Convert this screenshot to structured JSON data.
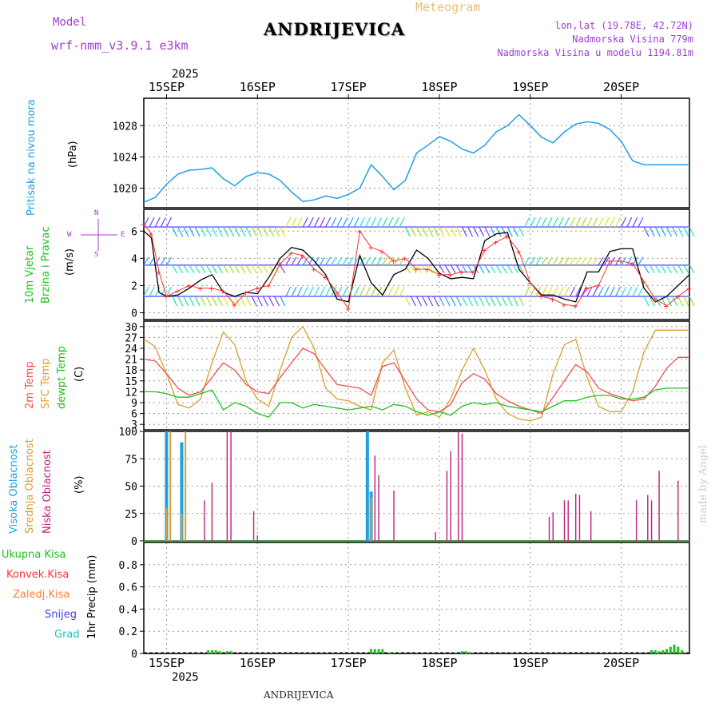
{
  "header": {
    "model_label": "Model",
    "model_name": "wrf-nmm_v3.9.1  e3km",
    "title": "ANDRIJEVICA",
    "subtitle": "Meteogram",
    "coords": "lon,lat (19.78E, 42.72N)",
    "elevation": "Nadmorska Visina 779m",
    "model_elevation": "Nadmorska Visina u modelu 1194.81m"
  },
  "footer": {
    "station": "ANDRIJEVICA",
    "credit": "made by Angel",
    "year": "2025"
  },
  "colors": {
    "pressure": "#1ea0e6",
    "wind_speed": "#000000",
    "wind_gust": "#ff3030",
    "temp_2m": "#f05050",
    "temp_sfc": "#d8a030",
    "dewpoint": "#20c020",
    "cloud_high": "#1ea0e6",
    "cloud_mid": "#d8a030",
    "cloud_low": "#c0207a",
    "precip_total": "#20c020",
    "precip_conv": "#ff3030",
    "precip_frozen": "#ff8030",
    "precip_snow": "#4040e0",
    "precip_graupel": "#20c0c0",
    "label_purple": "#a040d0"
  },
  "chart_data": [
    {
      "type": "line",
      "panel": "pressure",
      "ylabel_name": "Pritisak na nivou mora",
      "units": "(hPa)",
      "ylim": [
        1017.5,
        1031.5
      ],
      "yticks": [
        1020,
        1024,
        1028
      ],
      "x_days": [
        "15SEP",
        "16SEP",
        "17SEP",
        "18SEP",
        "19SEP",
        "20SEP"
      ],
      "x_range_hours": [
        -6,
        138
      ],
      "x": [
        -6,
        -3,
        0,
        3,
        6,
        9,
        12,
        15,
        18,
        21,
        24,
        27,
        30,
        33,
        36,
        39,
        42,
        45,
        48,
        51,
        54,
        57,
        60,
        63,
        66,
        69,
        72,
        75,
        78,
        81,
        84,
        87,
        90,
        93,
        96,
        99,
        102,
        105,
        108,
        111,
        114,
        117,
        120,
        123,
        126,
        129,
        132,
        135,
        138
      ],
      "values": [
        1018.2,
        1018.8,
        1020.5,
        1021.8,
        1022.3,
        1022.4,
        1022.6,
        1021.2,
        1020.3,
        1021.5,
        1022.0,
        1021.8,
        1021.0,
        1019.5,
        1018.3,
        1018.5,
        1019.0,
        1018.7,
        1019.2,
        1020.0,
        1023.0,
        1021.5,
        1019.8,
        1021.0,
        1024.5,
        1025.5,
        1026.6,
        1026.0,
        1025.0,
        1024.5,
        1025.5,
        1027.2,
        1028.0,
        1029.4,
        1028.0,
        1026.5,
        1025.8,
        1027.2,
        1028.2,
        1028.5,
        1028.3,
        1027.5,
        1026.0,
        1023.5,
        1023.0,
        1023.0,
        1023.0,
        1023.0,
        1023.0
      ]
    },
    {
      "type": "line",
      "panel": "wind",
      "ylabel_name": "10m Vjetar",
      "ylabel_sub": "Brzina i Pravac",
      "units": "(m/s)",
      "compass": {
        "n": "N",
        "s": "S",
        "e": "E",
        "w": "W"
      },
      "ylim": [
        -0.5,
        7.6
      ],
      "yticks": [
        0,
        2,
        4,
        6
      ],
      "x": [
        -6,
        -4,
        -2,
        0,
        3,
        6,
        9,
        12,
        15,
        18,
        21,
        24,
        27,
        30,
        33,
        36,
        39,
        42,
        45,
        48,
        51,
        54,
        57,
        60,
        63,
        66,
        69,
        72,
        75,
        78,
        81,
        84,
        87,
        90,
        93,
        96,
        99,
        102,
        105,
        108,
        111,
        114,
        117,
        120,
        123,
        126,
        129,
        132,
        135,
        138
      ],
      "series": [
        {
          "name": "speed",
          "values": [
            6.0,
            5.5,
            1.5,
            1.2,
            1.3,
            1.8,
            2.4,
            2.8,
            1.5,
            1.2,
            1.5,
            1.4,
            2.6,
            4.0,
            4.8,
            4.6,
            3.8,
            2.8,
            1.0,
            0.8,
            4.2,
            2.2,
            1.3,
            2.8,
            3.2,
            4.6,
            4.0,
            2.9,
            2.5,
            2.6,
            2.5,
            5.3,
            5.8,
            5.9,
            3.2,
            2.2,
            1.3,
            1.3,
            1.0,
            0.8,
            3.0,
            3.0,
            4.5,
            4.7,
            4.7,
            1.8,
            0.8,
            1.2,
            2.0,
            2.8
          ]
        },
        {
          "name": "gust",
          "values": [
            6.5,
            5.8,
            3.0,
            1.2,
            1.6,
            2.0,
            1.8,
            1.8,
            1.6,
            0.6,
            1.5,
            1.8,
            2.0,
            3.6,
            4.4,
            4.2,
            3.2,
            2.6,
            1.5,
            0.3,
            6.0,
            4.8,
            4.5,
            3.8,
            4.0,
            3.2,
            3.2,
            2.8,
            2.8,
            3.0,
            3.0,
            4.6,
            5.2,
            5.6,
            4.5,
            2.2,
            1.2,
            1.0,
            0.6,
            0.5,
            1.8,
            2.0,
            3.8,
            3.8,
            3.6,
            2.3,
            1.0,
            0.5,
            1.2,
            1.8
          ]
        }
      ],
      "barb_rows": [
        {
          "level": 6.3,
          "colors": [
            "#7040ff",
            "#20a0ff",
            "#20e0e0",
            "#20e0a0",
            "#a0e020",
            "#e0e020"
          ]
        },
        {
          "level": 3.5,
          "colors": [
            "#7040ff",
            "#20a0ff",
            "#20e0e0",
            "#20e0a0",
            "#a0e020",
            "#e0e020"
          ]
        },
        {
          "level": 1.2,
          "colors": [
            "#7040ff",
            "#20a0ff",
            "#20e0e0",
            "#20e0a0",
            "#a0e020",
            "#e0e020"
          ]
        }
      ]
    },
    {
      "type": "line",
      "panel": "temperature",
      "legend": [
        "2m Temp",
        "SFC Temp",
        "dewpt Temp"
      ],
      "units": "(C)",
      "ylim": [
        1.5,
        31.5
      ],
      "yticks": [
        3,
        6,
        9,
        12,
        15,
        18,
        21,
        24,
        27,
        30
      ],
      "x": [
        -6,
        -3,
        0,
        3,
        6,
        9,
        12,
        15,
        18,
        21,
        24,
        27,
        30,
        33,
        36,
        39,
        42,
        45,
        48,
        51,
        54,
        57,
        60,
        63,
        66,
        69,
        72,
        75,
        78,
        81,
        84,
        87,
        90,
        93,
        96,
        99,
        102,
        105,
        108,
        111,
        114,
        117,
        120,
        123,
        126,
        129,
        132,
        135,
        138
      ],
      "series": [
        {
          "name": "2m Temp",
          "values": [
            21.0,
            20.5,
            17.0,
            13.0,
            11.0,
            12.0,
            16.0,
            20.0,
            18.0,
            14.0,
            12.0,
            11.5,
            16.0,
            20.0,
            24.0,
            22.5,
            18.0,
            14.0,
            13.5,
            13.0,
            11.0,
            19.0,
            20.0,
            15.0,
            10.0,
            7.0,
            6.5,
            8.5,
            14.5,
            17.0,
            15.5,
            11.5,
            9.5,
            8.0,
            7.0,
            6.0,
            10.5,
            15.0,
            19.5,
            17.5,
            13.0,
            11.5,
            10.5,
            9.5,
            10.0,
            13.5,
            18.5,
            21.5,
            21.5
          ]
        },
        {
          "name": "SFC Temp",
          "values": [
            26.5,
            24.5,
            17.0,
            8.5,
            7.5,
            10.0,
            20.0,
            28.5,
            25.0,
            15.0,
            10.0,
            8.0,
            18.0,
            27.0,
            30.0,
            24.0,
            13.0,
            10.0,
            9.5,
            8.0,
            7.0,
            20.0,
            23.5,
            13.0,
            5.5,
            6.5,
            5.0,
            10.0,
            18.0,
            24.0,
            18.0,
            10.0,
            6.0,
            4.5,
            4.0,
            5.0,
            17.0,
            25.0,
            26.5,
            16.0,
            8.0,
            6.5,
            6.5,
            12.0,
            23.0,
            29.0,
            29.0,
            29.0,
            29.0
          ]
        },
        {
          "name": "dewpt Temp",
          "values": [
            12.0,
            12.0,
            11.5,
            10.5,
            10.5,
            11.5,
            12.5,
            7.0,
            9.0,
            8.0,
            6.0,
            5.0,
            9.0,
            9.0,
            7.5,
            8.5,
            8.0,
            7.5,
            7.0,
            7.5,
            8.0,
            7.0,
            8.5,
            8.0,
            6.5,
            5.5,
            6.5,
            5.5,
            8.0,
            9.0,
            8.5,
            9.0,
            8.0,
            7.5,
            7.0,
            6.5,
            8.0,
            9.5,
            9.5,
            10.5,
            11.0,
            11.0,
            10.0,
            10.0,
            10.5,
            12.5,
            13.0,
            13.0,
            13.0
          ]
        }
      ]
    },
    {
      "type": "bar",
      "panel": "clouds",
      "legend": [
        "Visoka Oblacnost",
        "Srednja Oblacnost",
        "Niska Oblacnost"
      ],
      "units": "(%)",
      "ylim": [
        0,
        100
      ],
      "yticks": [
        0,
        25,
        50,
        75,
        100
      ],
      "series": [
        {
          "name": "Visoka Oblacnost",
          "x": [
            0,
            4,
            53,
            54
          ],
          "values": [
            100,
            90,
            100,
            45
          ]
        },
        {
          "name": "Srednja Oblacnost",
          "x": [
            0,
            1,
            4,
            5,
            54
          ],
          "values": [
            30,
            100,
            25,
            100,
            40
          ]
        },
        {
          "name": "Niska Oblacnost",
          "x": [
            10,
            12,
            16,
            17,
            23,
            24,
            55,
            56,
            60,
            71,
            74,
            75,
            77,
            78,
            101,
            102,
            105,
            106,
            108,
            109,
            112,
            124,
            127,
            128,
            130,
            135
          ],
          "values": [
            37,
            53,
            100,
            100,
            27,
            5,
            78,
            60,
            46,
            8,
            64,
            82,
            100,
            98,
            22,
            26,
            37,
            37,
            43,
            42,
            27,
            37,
            42,
            37,
            64,
            55
          ]
        }
      ]
    },
    {
      "type": "bar",
      "panel": "precip",
      "legend": [
        "Ukupna Kisa",
        "Konvek.Kisa",
        "Zaledj.Kisa",
        "Snijeg",
        "Grad"
      ],
      "units": "1hr Precip (mm)",
      "ylim": [
        0,
        1.0
      ],
      "yticks": [
        0,
        0.2,
        0.4,
        0.6,
        0.8
      ],
      "series": [
        {
          "name": "Ukupna Kisa",
          "x": [
            11,
            12,
            13,
            14,
            16,
            17,
            54,
            55,
            56,
            57,
            59,
            78,
            79,
            80,
            128,
            129,
            130,
            131,
            132,
            133,
            134,
            135,
            136
          ],
          "values": [
            0.03,
            0.03,
            0.03,
            0.02,
            0.02,
            0.02,
            0.04,
            0.04,
            0.04,
            0.04,
            0.01,
            0.02,
            0.02,
            0.01,
            0.03,
            0.03,
            0.02,
            0.03,
            0.04,
            0.06,
            0.08,
            0.06,
            0.03
          ]
        }
      ]
    }
  ]
}
